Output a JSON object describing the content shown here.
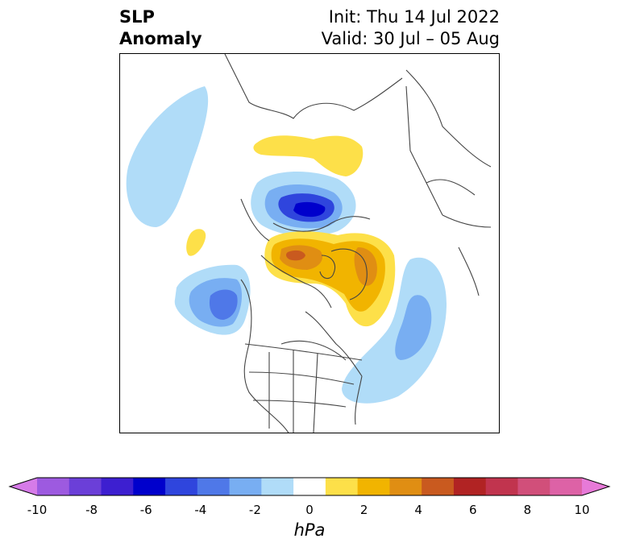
{
  "title": {
    "line1": "SLP",
    "line2": "Anomaly"
  },
  "init": "Init: Thu 14 Jul 2022",
  "valid": "Valid: 30 Jul – 05 Aug",
  "colorbar": {
    "unit": "hPa",
    "ticks": [
      "-10",
      "-8",
      "-6",
      "-4",
      "-2",
      "0",
      "2",
      "4",
      "6",
      "8",
      "10"
    ],
    "colors": [
      "#d67be8",
      "#9d5ae0",
      "#6b3fd8",
      "#3d1fd0",
      "#0000cc",
      "#2f45dd",
      "#4f78e8",
      "#78aef2",
      "#b0dcf8",
      "#ffffff",
      "#fde049",
      "#f1b400",
      "#e08e13",
      "#c95a1f",
      "#b12323",
      "#c1344e",
      "#d14f7a",
      "#dd62a6",
      "#e77ad8"
    ]
  }
}
